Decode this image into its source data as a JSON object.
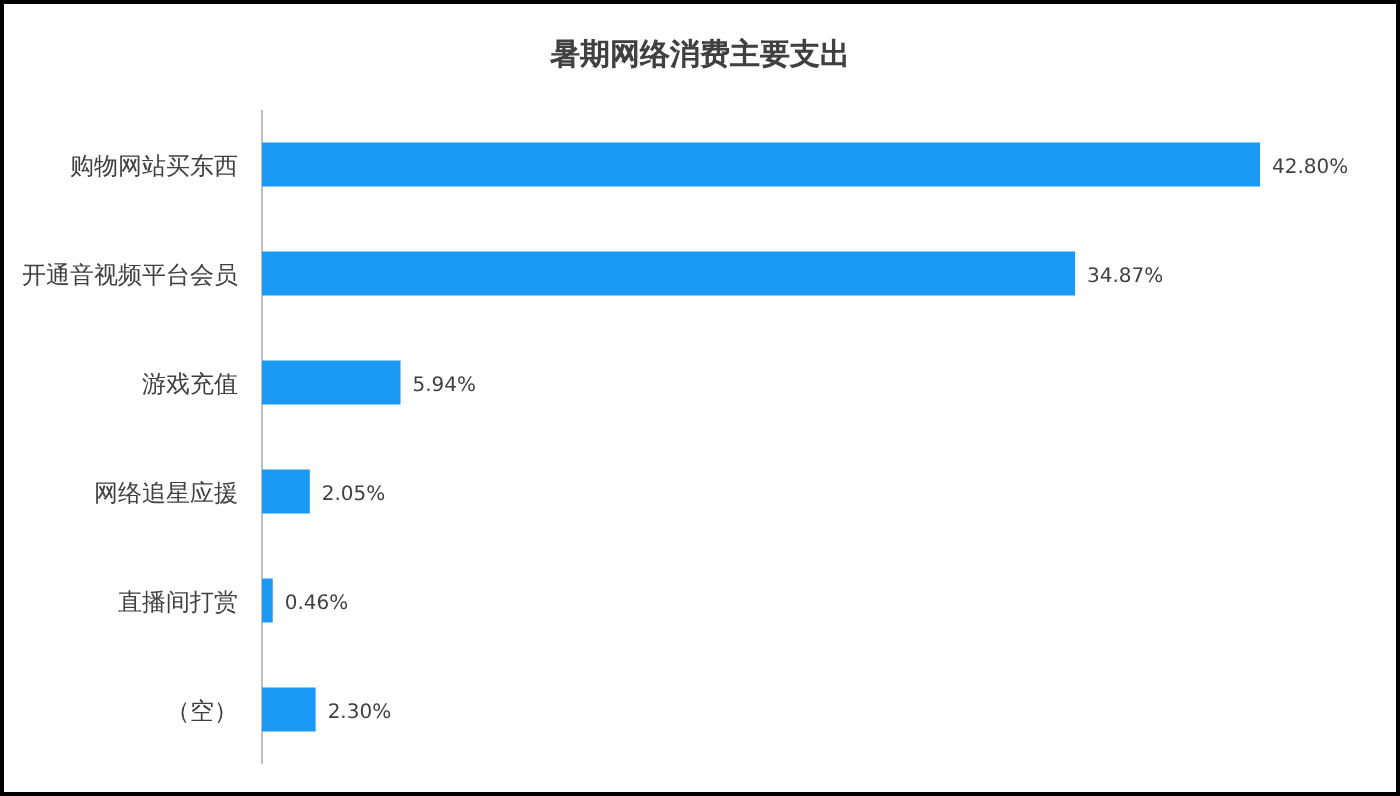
{
  "chart_data": {
    "type": "bar",
    "orientation": "horizontal",
    "title": "暑期网络消费主要支出",
    "categories": [
      "购物网站买东西",
      "开通音视频平台会员",
      "游戏充值",
      "网络追星应援",
      "直播间打赏",
      "（空）"
    ],
    "values": [
      42.8,
      34.87,
      5.94,
      2.05,
      0.46,
      2.3
    ],
    "value_labels": [
      "42.80%",
      "34.87%",
      "5.94%",
      "2.05%",
      "0.46%",
      "2.30%"
    ],
    "color": "#1a9af5"
  }
}
